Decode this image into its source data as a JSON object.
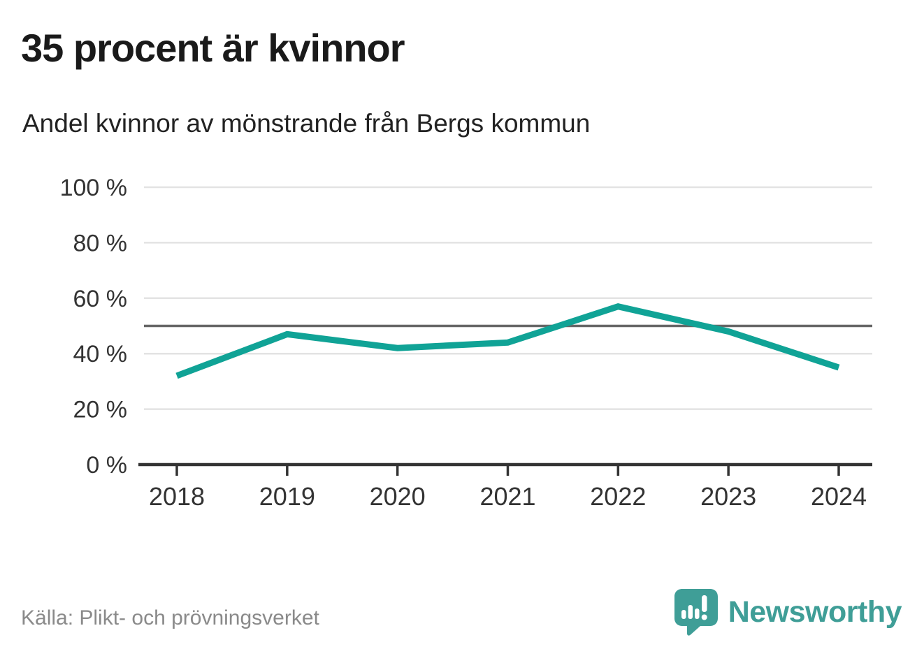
{
  "title": "35 procent är kvinnor",
  "subtitle": "Andel kvinnor av mönstrande från Bergs kommun",
  "source": "Källa: Plikt- och prövningsverket",
  "brand": {
    "name": "Newsworthy",
    "logo_icon": "speech-bubble-bar-chart-exclamation",
    "color": "#3f9e97"
  },
  "colors": {
    "line": "#10a396",
    "grid": "#e3e3e3",
    "reference_line": "#666666",
    "axis": "#333333",
    "tick_label": "#333333",
    "title_text": "#1a1a1a",
    "muted_text": "#8a8a8a",
    "background": "#ffffff"
  },
  "chart_data": {
    "type": "line",
    "title": "35 procent är kvinnor",
    "subtitle": "Andel kvinnor av mönstrande från Bergs kommun",
    "xlabel": "",
    "ylabel": "",
    "x": [
      "2018",
      "2019",
      "2020",
      "2021",
      "2022",
      "2023",
      "2024"
    ],
    "series": [
      {
        "name": "Andel kvinnor av mönstrande (%)",
        "values": [
          32,
          47,
          42,
          44,
          57,
          48,
          35
        ]
      }
    ],
    "ylim": [
      0,
      100
    ],
    "yticks": [
      0,
      20,
      40,
      60,
      80,
      100
    ],
    "ytick_suffix": " %",
    "reference_line": 50,
    "grid": true,
    "legend": "none"
  }
}
